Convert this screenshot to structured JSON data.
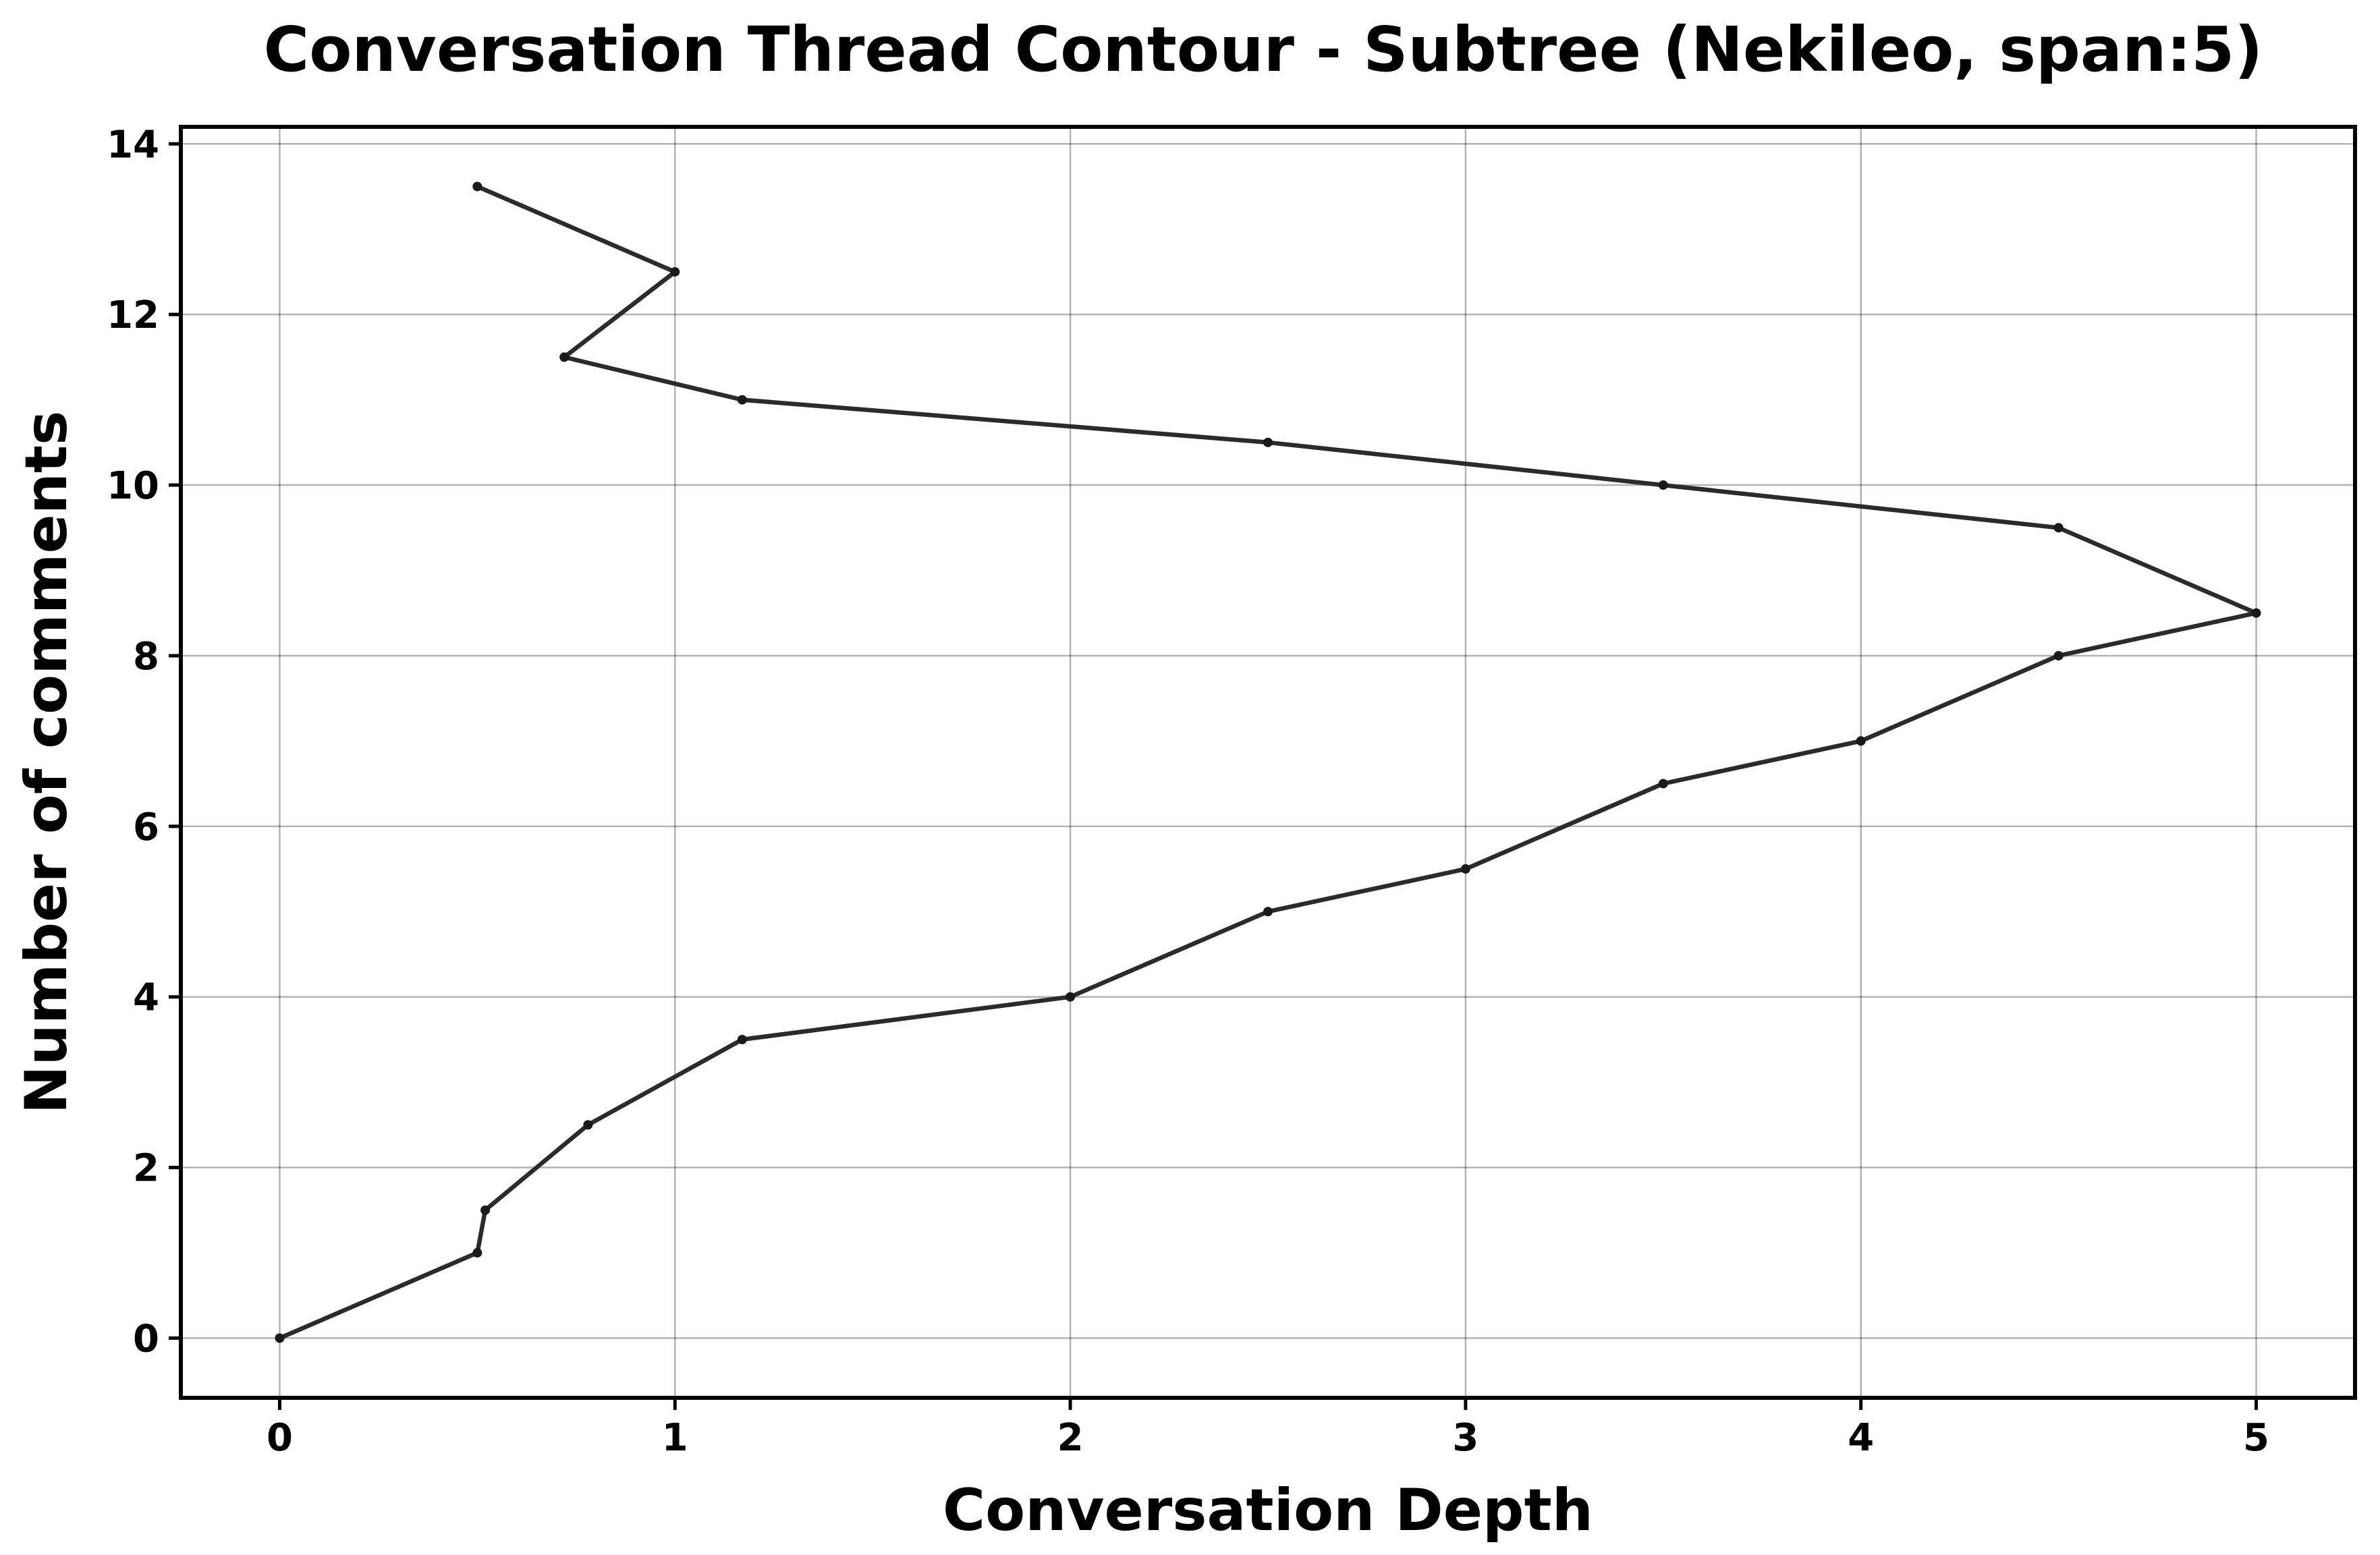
{
  "chart_data": {
    "type": "line",
    "title": "Conversation Thread Contour  - Subtree (Nekileo, span:5)",
    "xlabel": "Conversation Depth",
    "ylabel": "Number of comments",
    "xlim": [
      -0.25,
      5.25
    ],
    "ylim": [
      -0.7,
      14.2
    ],
    "xticks": [
      0,
      1,
      2,
      3,
      4,
      5
    ],
    "yticks": [
      0,
      2,
      4,
      6,
      8,
      10,
      12,
      14
    ],
    "grid": true,
    "line_color": "#2b2b2b",
    "series": [
      {
        "x": [
          0,
          0.5,
          0.52,
          0.78,
          1.17,
          2,
          2.5,
          3,
          3.5,
          4,
          4.5,
          5,
          4.5,
          3.5,
          2.5,
          1.17,
          0.72,
          1,
          0.5
        ],
        "y": [
          0,
          1,
          1.5,
          2.5,
          3.5,
          4,
          5,
          5.5,
          6.5,
          7,
          8,
          8.5,
          9.5,
          10,
          10.5,
          11,
          11.5,
          12.5,
          13.5
        ]
      }
    ]
  }
}
